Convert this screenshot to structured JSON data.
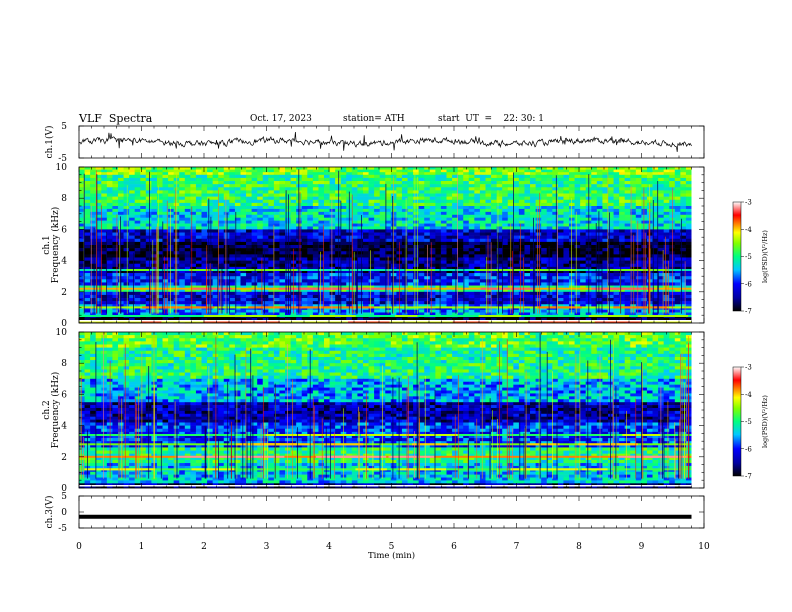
{
  "header": {
    "title": "VLF  Spectra",
    "date": "Oct. 17, 2023",
    "station": "station= ATH",
    "start": "start  UT  =    22: 30: 1"
  },
  "chart_data": [
    {
      "type": "line",
      "name": "ch1-waveform",
      "ylabel": "ch.1(V)",
      "ylim": [
        -5,
        5
      ],
      "yticks": [
        "5",
        "-5"
      ],
      "x_range_min": [
        0,
        9.8
      ],
      "description_level": "noisy trace around 0 V, approx range -1.5 to +1.5"
    },
    {
      "type": "heatmap",
      "name": "ch1-spectrogram",
      "ylabel_line1": "ch.1",
      "ylabel_line2": "Frequency  (kHz)",
      "ylim": [
        0,
        10
      ],
      "yticks": [
        "10",
        "8",
        "6",
        "4",
        "2",
        "0"
      ],
      "colorbar": {
        "label": "log(PSD)(V²/Hz)",
        "ticks": [
          "-3",
          "-4",
          "-5",
          "-6",
          "-7"
        ],
        "range": [
          -7,
          -3
        ]
      },
      "bands_khz": [
        {
          "from": 9.5,
          "to": 10.0,
          "level": -4.6
        },
        {
          "from": 7.5,
          "to": 9.5,
          "level": -4.9
        },
        {
          "from": 6.0,
          "to": 7.5,
          "level": -5.3
        },
        {
          "from": 5.2,
          "to": 6.0,
          "level": -6.3
        },
        {
          "from": 4.2,
          "to": 5.2,
          "level": -6.9
        },
        {
          "from": 3.2,
          "to": 4.2,
          "level": -6.5
        },
        {
          "from": 2.4,
          "to": 3.2,
          "level": -6.0
        },
        {
          "from": 2.0,
          "to": 2.4,
          "level": -5.0
        },
        {
          "from": 1.2,
          "to": 2.0,
          "level": -6.2
        },
        {
          "from": 0.5,
          "to": 1.2,
          "level": -5.6
        },
        {
          "from": 0.0,
          "to": 0.5,
          "level": -7.0
        }
      ],
      "lines_khz": [
        {
          "f": 2.2,
          "level": -3.9
        },
        {
          "f": 1.0,
          "level": -4.4
        },
        {
          "f": 3.4,
          "level": -5.2
        },
        {
          "f": 0.45,
          "level": -5.0
        },
        {
          "f": 0.1,
          "level": -4.2
        }
      ]
    },
    {
      "type": "heatmap",
      "name": "ch2-spectrogram",
      "ylabel_line1": "ch.2",
      "ylabel_line2": "Frequency  (kHz)",
      "ylim": [
        0,
        10
      ],
      "yticks": [
        "10",
        "8",
        "6",
        "4",
        "2",
        "0"
      ],
      "colorbar": {
        "label": "log(PSD)(V²/Hz)",
        "ticks": [
          "-3",
          "-4",
          "-5",
          "-6",
          "-7"
        ],
        "range": [
          -7,
          -3
        ]
      },
      "bands_khz": [
        {
          "from": 9.0,
          "to": 10.0,
          "level": -4.7
        },
        {
          "from": 7.0,
          "to": 9.0,
          "level": -5.0
        },
        {
          "from": 5.5,
          "to": 7.0,
          "level": -5.5
        },
        {
          "from": 4.2,
          "to": 5.5,
          "level": -6.4
        },
        {
          "from": 2.6,
          "to": 4.2,
          "level": -5.9
        },
        {
          "from": 1.6,
          "to": 2.6,
          "level": -5.0
        },
        {
          "from": 0.3,
          "to": 1.6,
          "level": -5.4
        },
        {
          "from": 0.0,
          "to": 0.3,
          "level": -6.6
        }
      ],
      "lines_khz": [
        {
          "f": 2.0,
          "level": -3.8
        },
        {
          "f": 2.8,
          "level": -4.6
        },
        {
          "f": 3.4,
          "level": -4.9
        },
        {
          "f": 1.2,
          "level": -4.8
        }
      ]
    },
    {
      "type": "line",
      "name": "ch3-waveform",
      "ylabel": "ch.3(V)",
      "ylim": [
        -5,
        5
      ],
      "yticks": [
        "5",
        "0",
        "-5"
      ],
      "constant_value": -1.5
    }
  ],
  "xaxis": {
    "label": "Time  (min)",
    "range": [
      0,
      10
    ],
    "ticks": [
      "0",
      "1",
      "2",
      "3",
      "4",
      "5",
      "6",
      "7",
      "8",
      "9",
      "10"
    ]
  },
  "colors": {
    "ink": "#000000",
    "background": "#ffffff"
  }
}
